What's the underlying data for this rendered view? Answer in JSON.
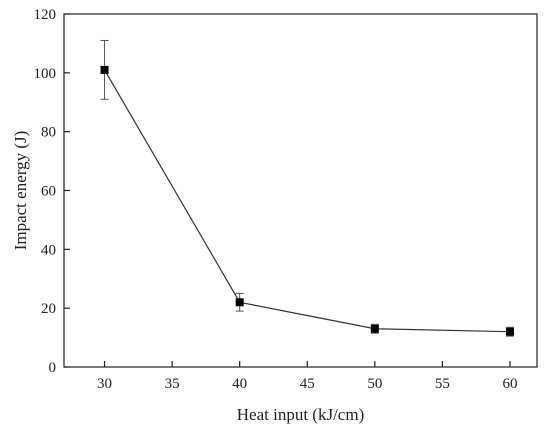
{
  "chart_data": {
    "type": "line",
    "title": "",
    "xlabel": "Heat input (kJ/cm)",
    "ylabel": "Impact energy (J)",
    "xlim": [
      27,
      62
    ],
    "ylim": [
      0,
      120
    ],
    "xticks": [
      30,
      35,
      40,
      45,
      50,
      55,
      60
    ],
    "yticks": [
      0,
      20,
      40,
      60,
      80,
      100,
      120
    ],
    "grid": false,
    "series": [
      {
        "x": [
          30,
          40,
          50,
          60
        ],
        "values": [
          101,
          22,
          13,
          12
        ],
        "error": [
          10,
          3,
          1.5,
          1.5
        ],
        "marker": "square",
        "color": "#000000"
      }
    ]
  }
}
